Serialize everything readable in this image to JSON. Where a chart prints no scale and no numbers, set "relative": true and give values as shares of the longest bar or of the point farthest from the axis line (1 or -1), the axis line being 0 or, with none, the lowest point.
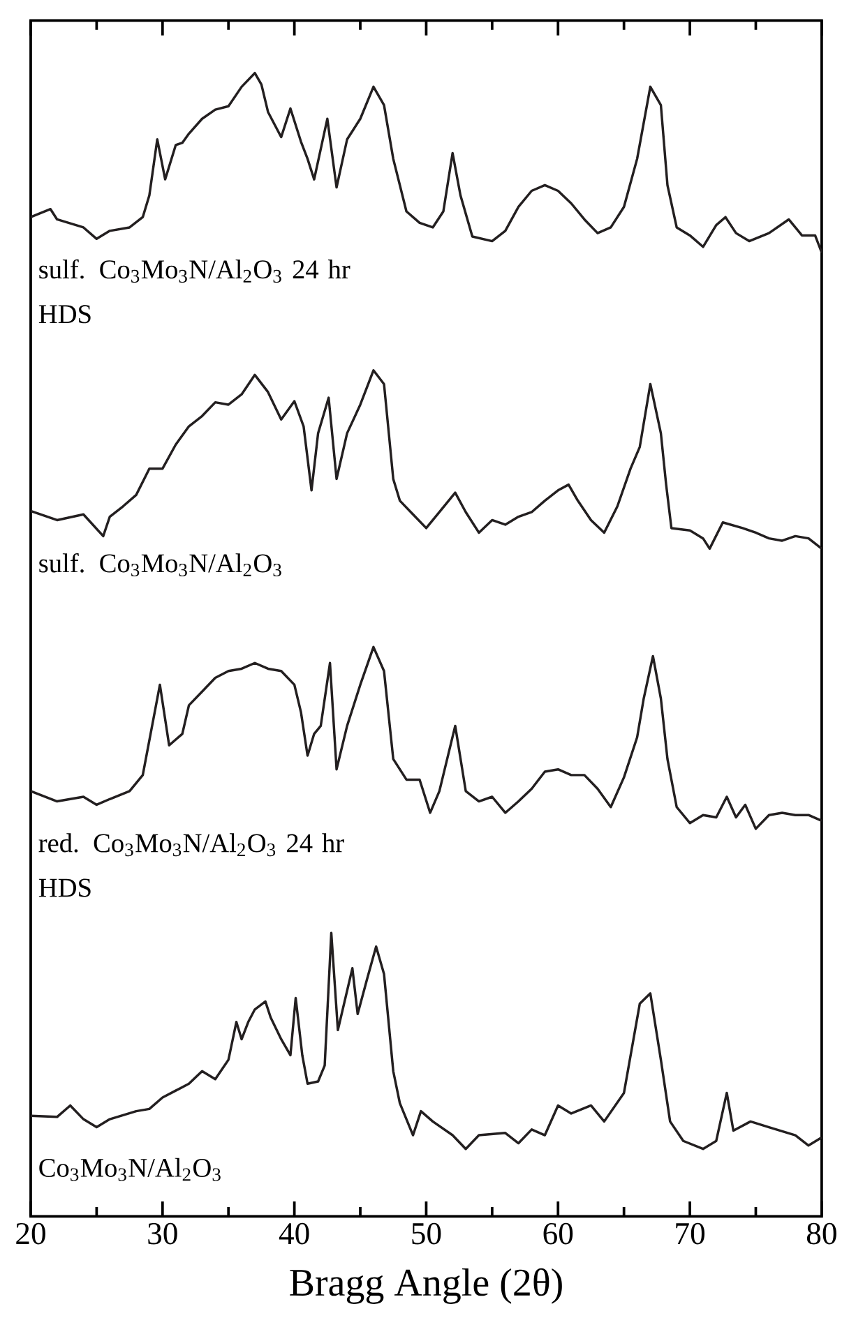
{
  "chart_data": {
    "type": "line",
    "relative": true,
    "xlabel": "Bragg Angle (2θ)",
    "xlim": [
      20,
      80
    ],
    "xticks": [
      20,
      {
        "value": 25,
        "label": null
      },
      30,
      {
        "value": 35,
        "label": null
      },
      40,
      {
        "value": 45,
        "label": null
      },
      50,
      {
        "value": 55,
        "label": null
      },
      60,
      {
        "value": 65,
        "label": null
      },
      70,
      {
        "value": 75,
        "label": null
      },
      80
    ],
    "tick_labels": "x",
    "series": [
      {
        "name": "sulf. Co$_{3}$Mo$_{3}$N/Al$_{2}$O$_{3}$ 24 hr HDS",
        "color": "#231f20",
        "x": [
          20,
          21.5,
          22,
          24,
          25,
          26,
          27.5,
          28.5,
          29,
          29.6,
          30.2,
          31,
          31.5,
          32,
          33,
          34,
          35,
          36,
          37,
          37.5,
          38,
          39,
          39.7,
          40.5,
          41,
          41.5,
          42.5,
          43.2,
          44,
          45,
          46,
          46.8,
          47.5,
          48.5,
          49.5,
          50.5,
          51.3,
          52,
          52.6,
          53.5,
          55,
          56,
          57,
          58,
          59,
          60,
          61,
          62,
          63,
          64,
          65,
          66,
          67,
          67.8,
          68.3,
          69,
          70,
          71,
          72,
          72.7,
          73.5,
          74.5,
          76,
          77.5,
          78.5,
          79.5,
          80
        ],
        "values": [
          0.874,
          0.881,
          0.872,
          0.865,
          0.855,
          0.862,
          0.865,
          0.874,
          0.893,
          0.942,
          0.907,
          0.937,
          0.939,
          0.947,
          0.96,
          0.968,
          0.971,
          0.988,
          1.0,
          0.99,
          0.966,
          0.944,
          0.969,
          0.94,
          0.925,
          0.907,
          0.96,
          0.9,
          0.942,
          0.96,
          0.988,
          0.972,
          0.925,
          0.879,
          0.869,
          0.865,
          0.879,
          0.93,
          0.893,
          0.857,
          0.853,
          0.862,
          0.883,
          0.897,
          0.902,
          0.897,
          0.886,
          0.872,
          0.86,
          0.865,
          0.883,
          0.925,
          0.988,
          0.972,
          0.902,
          0.865,
          0.858,
          0.848,
          0.867,
          0.874,
          0.86,
          0.853,
          0.86,
          0.872,
          0.858,
          0.858,
          0.843
        ]
      },
      {
        "name": "sulf. Co$_{3}$Mo$_{3}$N/Al$_{2}$O$_{3}$",
        "color": "#231f20",
        "x": [
          20,
          22,
          24,
          25.5,
          26,
          27,
          28,
          29,
          30,
          31,
          32,
          33,
          34,
          35,
          36,
          37,
          38,
          39,
          40,
          40.7,
          41.3,
          41.8,
          42.6,
          43.2,
          44,
          45,
          46,
          46.8,
          47.5,
          48,
          49,
          50,
          51,
          52.2,
          53,
          54,
          55,
          56,
          57,
          58,
          59,
          60,
          60.8,
          61.5,
          62.5,
          63.5,
          64.5,
          65.5,
          66.2,
          67,
          67.8,
          68.2,
          68.6,
          70,
          71,
          71.5,
          72.5,
          74,
          75,
          76,
          77,
          78,
          79,
          80
        ],
        "values": [
          0.617,
          0.609,
          0.614,
          0.595,
          0.612,
          0.621,
          0.631,
          0.654,
          0.654,
          0.675,
          0.691,
          0.7,
          0.712,
          0.71,
          0.719,
          0.736,
          0.721,
          0.697,
          0.713,
          0.691,
          0.635,
          0.685,
          0.716,
          0.645,
          0.685,
          0.71,
          0.74,
          0.728,
          0.645,
          0.626,
          0.614,
          0.602,
          0.616,
          0.633,
          0.616,
          0.598,
          0.609,
          0.605,
          0.612,
          0.616,
          0.626,
          0.635,
          0.64,
          0.626,
          0.609,
          0.598,
          0.621,
          0.654,
          0.673,
          0.728,
          0.685,
          0.64,
          0.602,
          0.6,
          0.593,
          0.584,
          0.607,
          0.602,
          0.598,
          0.593,
          0.591,
          0.595,
          0.593,
          0.584
        ]
      },
      {
        "name": "red. Co$_{3}$Mo$_{3}$N/Al$_{2}$O$_{3}$ 24 hr HDS",
        "color": "#231f20",
        "x": [
          20,
          22,
          24,
          25,
          26,
          27.5,
          28.5,
          29.8,
          30.5,
          31.5,
          32,
          33,
          34,
          35,
          36,
          37,
          38,
          39,
          40,
          40.5,
          41,
          41.5,
          42,
          42.7,
          43.2,
          44,
          45,
          46,
          46.8,
          47.5,
          48.5,
          49.5,
          50.3,
          51,
          52.2,
          53,
          54,
          55,
          56,
          57,
          58,
          59,
          60,
          61,
          62,
          63,
          64,
          65,
          66,
          66.5,
          67.2,
          67.8,
          68.3,
          69,
          70,
          71,
          72,
          72.8,
          73.5,
          74.2,
          75,
          76,
          77,
          78,
          79,
          80
        ],
        "values": [
          0.372,
          0.363,
          0.367,
          0.36,
          0.365,
          0.372,
          0.386,
          0.465,
          0.412,
          0.422,
          0.447,
          0.459,
          0.471,
          0.477,
          0.479,
          0.484,
          0.479,
          0.477,
          0.465,
          0.441,
          0.403,
          0.422,
          0.429,
          0.484,
          0.391,
          0.429,
          0.465,
          0.498,
          0.477,
          0.4,
          0.382,
          0.382,
          0.353,
          0.372,
          0.429,
          0.372,
          0.363,
          0.367,
          0.353,
          0.363,
          0.374,
          0.389,
          0.391,
          0.386,
          0.386,
          0.374,
          0.358,
          0.384,
          0.419,
          0.453,
          0.49,
          0.453,
          0.4,
          0.358,
          0.344,
          0.351,
          0.349,
          0.367,
          0.349,
          0.36,
          0.339,
          0.351,
          0.353,
          0.351,
          0.351,
          0.346
        ]
      },
      {
        "name": "Co$_{3}$Mo$_{3}$N/Al$_{2}$O$_{3}$",
        "color": "#231f20",
        "x": [
          20,
          22,
          23,
          24,
          25,
          26,
          28,
          29,
          30,
          31,
          32,
          33,
          34,
          35,
          35.6,
          36,
          36.5,
          37,
          37.8,
          38.2,
          39,
          39.7,
          40.1,
          40.6,
          41,
          41.8,
          42.3,
          42.8,
          43.3,
          44.4,
          44.8,
          45.5,
          46.2,
          46.8,
          47.5,
          48,
          49,
          49.6,
          50.5,
          52,
          53,
          54,
          56,
          57,
          58,
          59,
          60,
          61,
          62.5,
          63.5,
          65,
          66.2,
          67,
          67.8,
          68.5,
          69.5,
          71,
          72,
          72.8,
          73.3,
          74.6,
          76,
          78,
          79,
          80
        ],
        "values": [
          0.088,
          0.087,
          0.097,
          0.085,
          0.078,
          0.085,
          0.092,
          0.094,
          0.104,
          0.11,
          0.116,
          0.127,
          0.12,
          0.137,
          0.17,
          0.155,
          0.17,
          0.181,
          0.188,
          0.174,
          0.155,
          0.141,
          0.191,
          0.141,
          0.116,
          0.118,
          0.132,
          0.248,
          0.163,
          0.217,
          0.177,
          0.207,
          0.236,
          0.212,
          0.127,
          0.099,
          0.071,
          0.092,
          0.083,
          0.071,
          0.059,
          0.071,
          0.073,
          0.064,
          0.076,
          0.071,
          0.097,
          0.09,
          0.097,
          0.083,
          0.108,
          0.186,
          0.195,
          0.137,
          0.083,
          0.066,
          0.059,
          0.066,
          0.108,
          0.075,
          0.083,
          0.078,
          0.071,
          0.062,
          0.069
        ]
      }
    ]
  }
}
